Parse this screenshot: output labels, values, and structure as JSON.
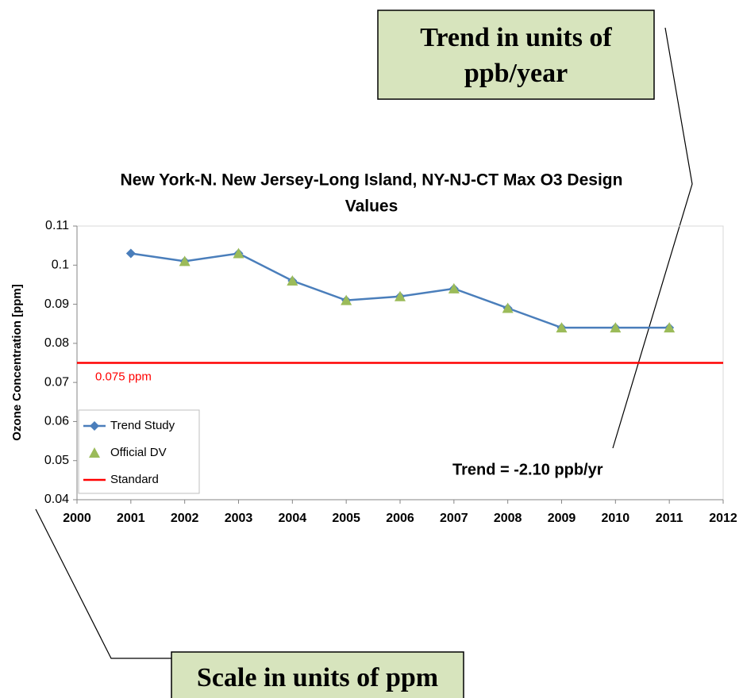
{
  "chart_data": {
    "type": "line",
    "title": "New York-N. New Jersey-Long Island, NY-NJ-CT Max O3 Design Values",
    "y_label": "Ozone Concentration [ppm]",
    "x": [
      2001,
      2002,
      2003,
      2004,
      2005,
      2006,
      2007,
      2008,
      2009,
      2010,
      2011
    ],
    "series": [
      {
        "name": "Trend Study",
        "color": "#4a7ebb",
        "marker": "diamond",
        "line": true,
        "values": [
          0.103,
          0.101,
          0.103,
          0.096,
          0.091,
          0.092,
          0.094,
          0.089,
          0.084,
          0.084,
          0.084
        ]
      },
      {
        "name": "Official DV",
        "color": "#9bbb59",
        "marker": "triangle",
        "line": false,
        "values": [
          null,
          0.101,
          0.103,
          0.096,
          0.091,
          0.092,
          0.094,
          0.089,
          0.084,
          0.084,
          0.084
        ]
      }
    ],
    "standard": {
      "name": "Standard",
      "value": 0.075,
      "color": "#ff0000",
      "label": "0.075 ppm"
    },
    "xlim": [
      2000,
      2012
    ],
    "xticks": [
      2000,
      2001,
      2002,
      2003,
      2004,
      2005,
      2006,
      2007,
      2008,
      2009,
      2010,
      2011,
      2012
    ],
    "ylim": [
      0.04,
      0.11
    ],
    "yticks": [
      0.04,
      0.05,
      0.06,
      0.07,
      0.08,
      0.09,
      0.1,
      0.11
    ],
    "grid": false,
    "legend": "lower left",
    "annotation": "Trend = -2.10 ppb/yr",
    "callouts": [
      {
        "lines": [
          "Trend in units of",
          "ppb/year"
        ]
      },
      {
        "lines": [
          "Scale in units of ppm"
        ]
      }
    ]
  }
}
